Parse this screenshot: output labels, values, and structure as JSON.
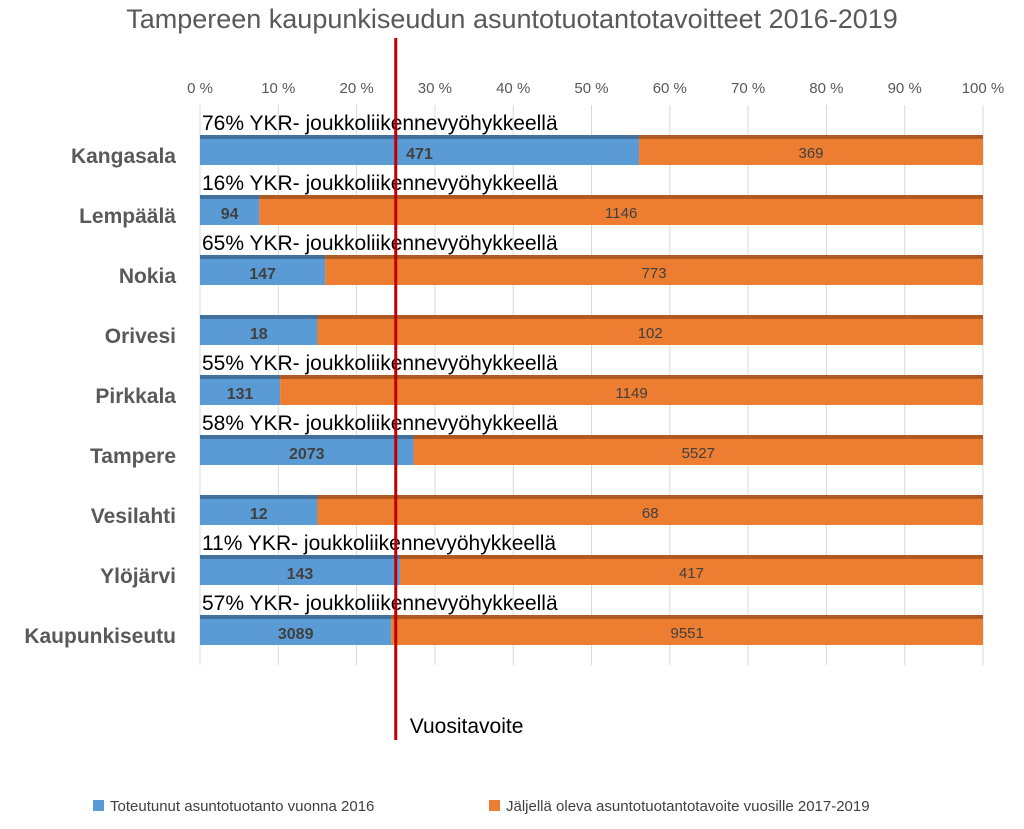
{
  "chart_data": {
    "type": "bar",
    "orientation": "horizontal",
    "stacked": "percent",
    "title": "Tampereen kaupunkiseudun asuntotuotantotavoitteet 2016-2019",
    "categories": [
      "Kangasala",
      "Lempäälä",
      "Nokia",
      "Orivesi",
      "Pirkkala",
      "Tampere",
      "Vesilahti",
      "Ylöjärvi",
      "Kaupunkiseutu"
    ],
    "series": [
      {
        "name": "Toteutunut asuntotuotanto vuonna 2016",
        "color": "#5b9bd5",
        "values": [
          471,
          94,
          147,
          18,
          131,
          2073,
          12,
          143,
          3089
        ]
      },
      {
        "name": "Jäljellä oleva asuntotuotantotavoite vuosille 2017-2019",
        "color": "#ed7d31",
        "values": [
          369,
          1146,
          773,
          102,
          1149,
          5527,
          68,
          417,
          9551
        ]
      }
    ],
    "annotations": [
      "76% YKR- joukkoliikennevyöhykkeellä",
      "16% YKR- joukkoliikennevyöhykkeellä",
      "65% YKR- joukkoliikennevyöhykkeellä",
      "",
      "55% YKR- joukkoliikennevyöhykkeellä",
      "58% YKR- joukkoliikennevyöhykkeellä",
      "",
      "11% YKR- joukkoliikennevyöhykkeellä",
      "57% YKR- joukkoliikennevyöhykkeellä"
    ],
    "x_ticks": [
      "0 %",
      "10 %",
      "20 %",
      "30 %",
      "40 %",
      "50 %",
      "60 %",
      "70 %",
      "80 %",
      "90 %",
      "100 %"
    ],
    "xlim": [
      0,
      100
    ],
    "target": {
      "label": "Vuositavoite",
      "value": 25,
      "color": "#c00000"
    },
    "legend_position": "bottom",
    "grid": true
  }
}
